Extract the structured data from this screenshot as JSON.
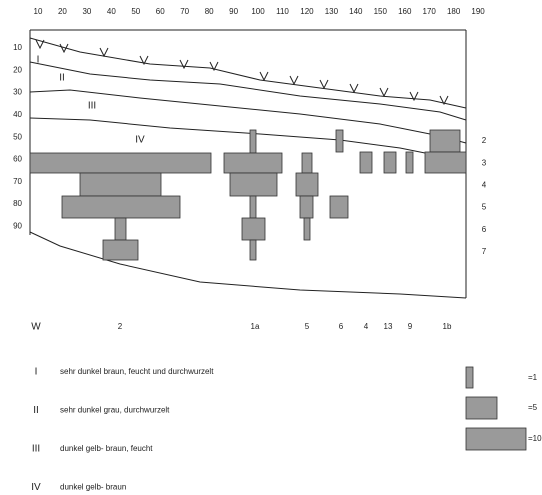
{
  "top_axis": [
    "10",
    "20",
    "30",
    "40",
    "50",
    "60",
    "70",
    "80",
    "90",
    "100",
    "110",
    "120",
    "130",
    "140",
    "150",
    "160",
    "170",
    "180",
    "190"
  ],
  "depth_axis": [
    "10",
    "20",
    "30",
    "40",
    "50",
    "60",
    "70",
    "80",
    "90"
  ],
  "row_labels": [
    "2",
    "3",
    "4",
    "5",
    "6",
    "7"
  ],
  "horizon_marks": [
    "I",
    "II",
    "III",
    "IV"
  ],
  "profile_labels": [
    "W",
    "2",
    "1a",
    "5",
    "6",
    "4",
    "13",
    "9",
    "1b"
  ],
  "legend": [
    {
      "symbol": "I",
      "text": "sehr dunkel braun, feucht und durchwurzelt"
    },
    {
      "symbol": "II",
      "text": "sehr dunkel grau, durchwurzelt"
    },
    {
      "symbol": "III",
      "text": "dunkel gelb- braun, feucht"
    },
    {
      "symbol": "IV",
      "text": "dunkel gelb- braun"
    }
  ],
  "scale": [
    "=1",
    "=5",
    "=10"
  ]
}
